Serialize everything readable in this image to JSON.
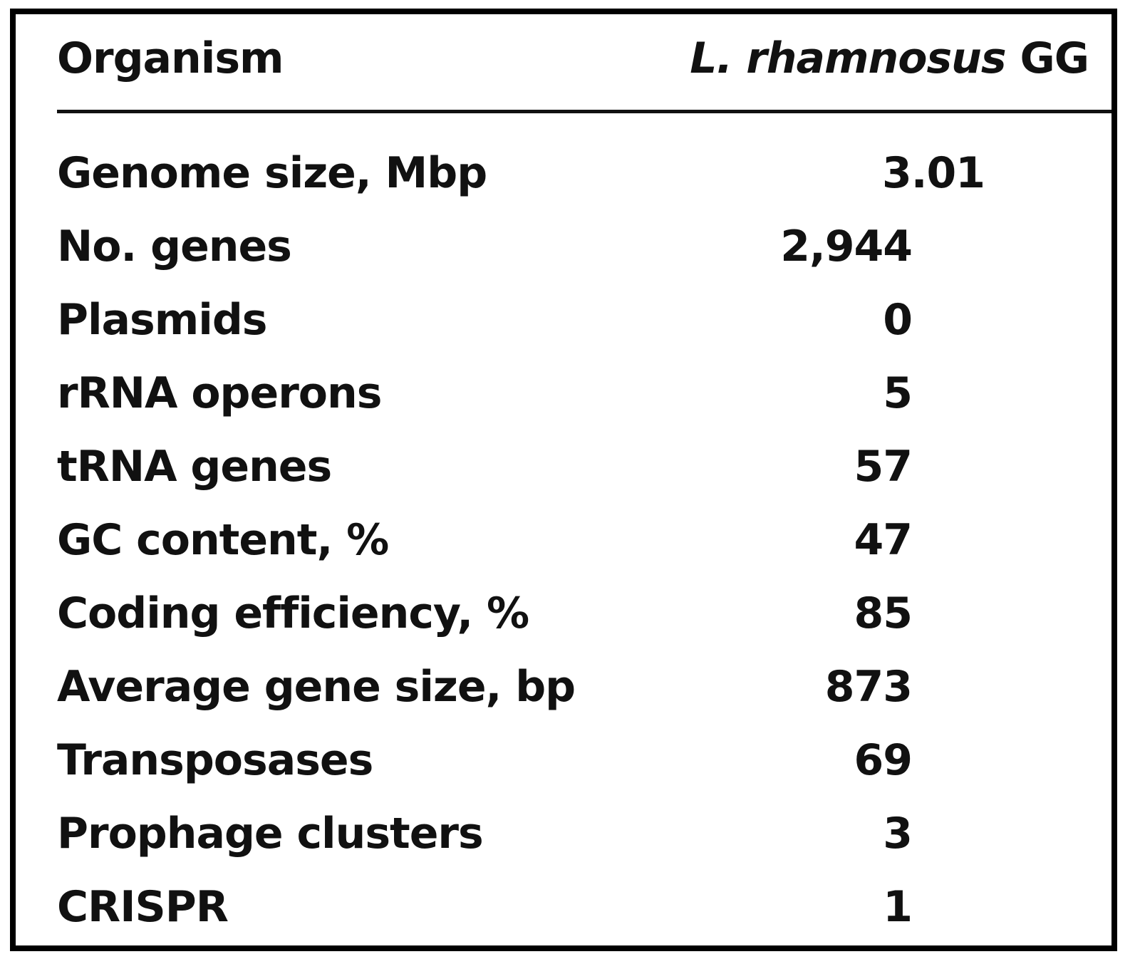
{
  "table": {
    "header": {
      "label": "Organism",
      "organism_italic": "L. rhamnosus",
      "organism_suffix": "GG"
    },
    "rows": [
      {
        "label": "Genome size, Mbp",
        "value": "3.01"
      },
      {
        "label": "No. genes",
        "value": "2,944"
      },
      {
        "label": "Plasmids",
        "value": "0"
      },
      {
        "label": "rRNA operons",
        "value": "5"
      },
      {
        "label": "tRNA genes",
        "value": "57"
      },
      {
        "label": "GC content, %",
        "value": "47"
      },
      {
        "label": "Coding efficiency, %",
        "value": "85"
      },
      {
        "label": "Average gene size, bp",
        "value": "873"
      },
      {
        "label": "Transposases",
        "value": "69"
      },
      {
        "label": "Prophage clusters",
        "value": "3"
      },
      {
        "label": "CRISPR",
        "value": "1"
      }
    ]
  }
}
